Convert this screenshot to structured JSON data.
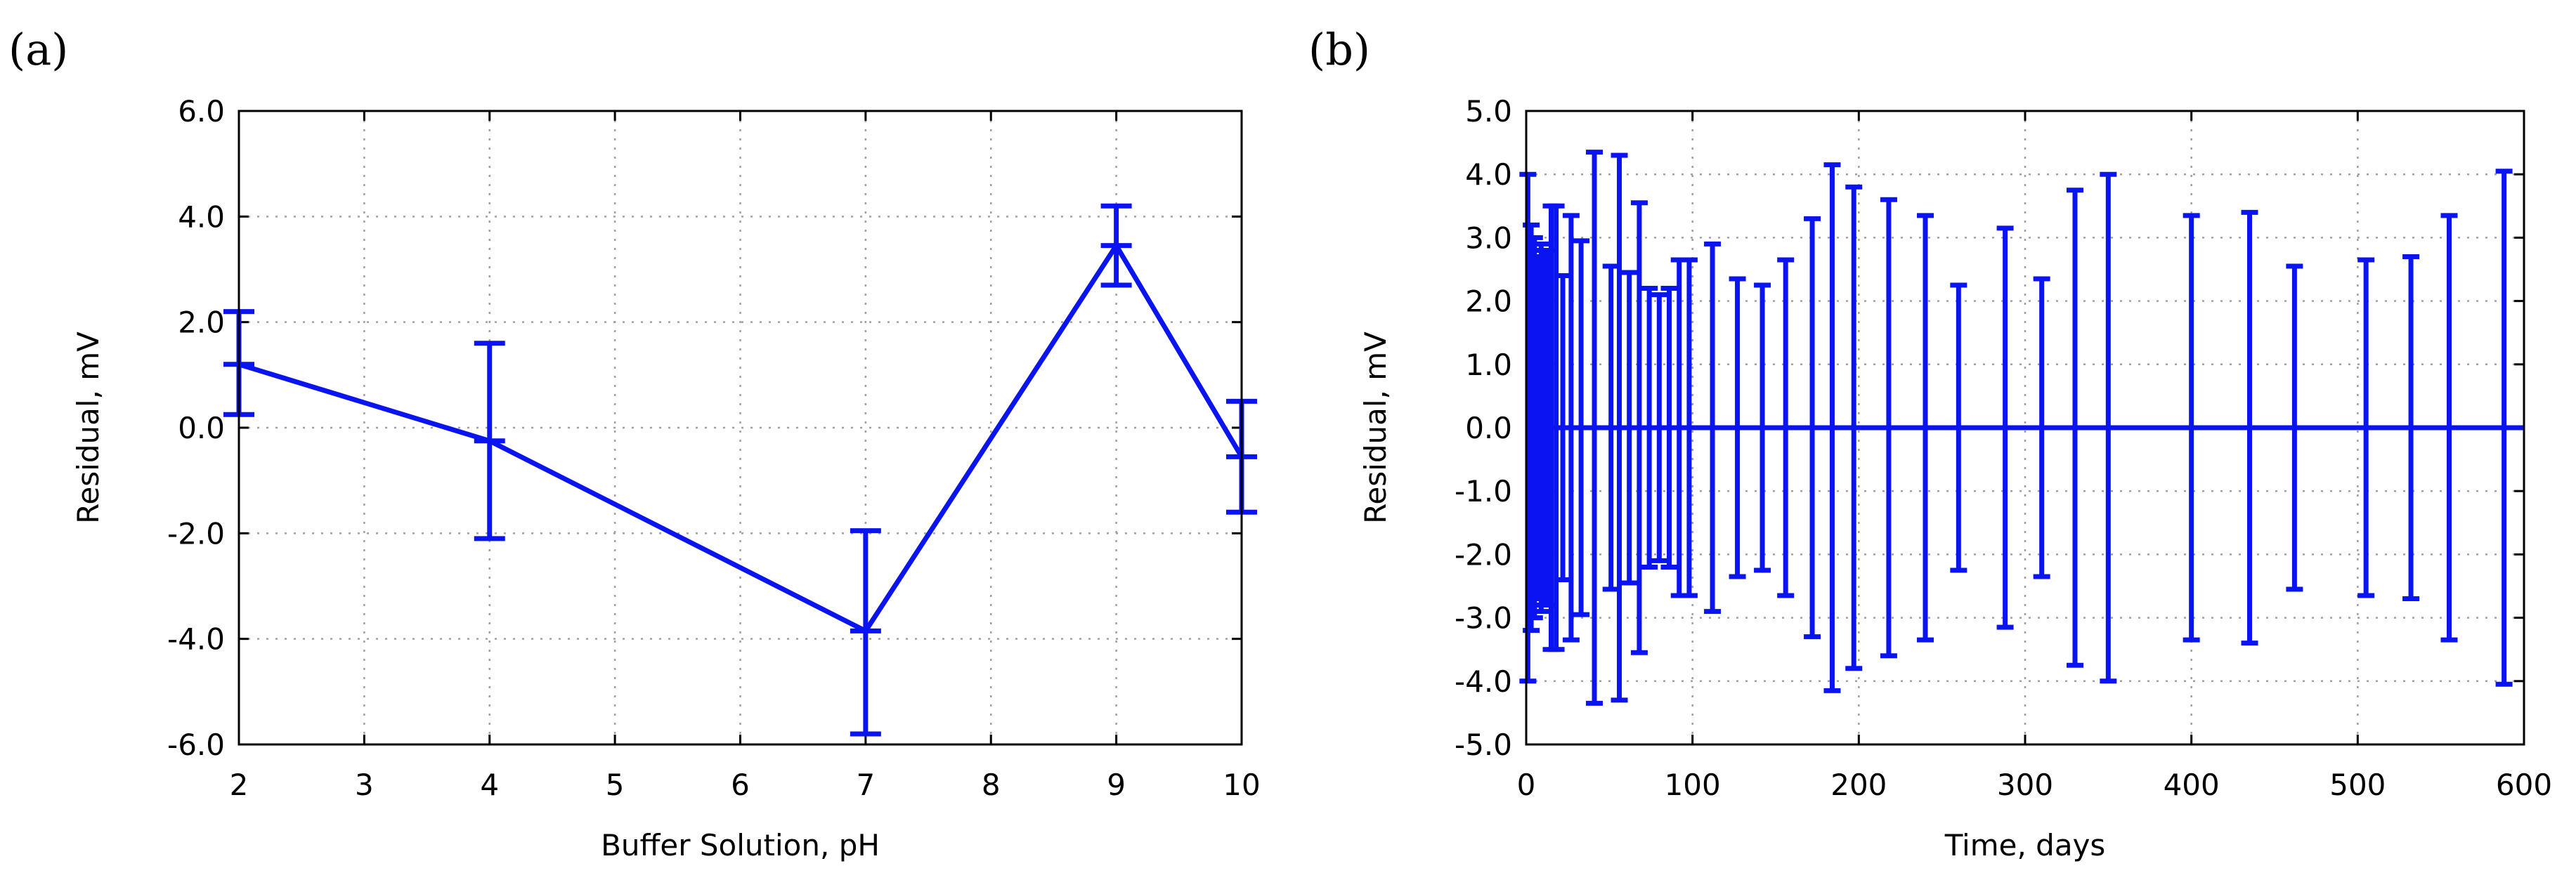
{
  "chart_data": [
    {
      "panel": "(a)",
      "type": "line",
      "title": "",
      "xlabel": "Buffer Solution, pH",
      "ylabel": "Residual, mV",
      "xlim": [
        2,
        10
      ],
      "ylim": [
        -6,
        6
      ],
      "x_ticks": [
        2,
        3,
        4,
        5,
        6,
        7,
        8,
        9,
        10
      ],
      "y_ticks": [
        -6,
        -4,
        -2,
        0,
        2,
        4,
        6
      ],
      "x_tick_labels": [
        "2",
        "3",
        "4",
        "5",
        "6",
        "7",
        "8",
        "9",
        "10"
      ],
      "y_tick_labels": [
        "-6.0",
        "-4.0",
        "-2.0",
        "0.0",
        "2.0",
        "4.0",
        "6.0"
      ],
      "grid": true,
      "series": [
        {
          "name": "Residual",
          "color": "#0a14f0",
          "x": [
            2,
            4,
            7,
            9,
            10
          ],
          "y": [
            1.2,
            -0.25,
            -3.85,
            3.45,
            -0.55
          ],
          "err_low": [
            0.25,
            -2.1,
            -5.8,
            2.7,
            -1.6
          ],
          "err_high": [
            2.2,
            1.6,
            -1.95,
            4.2,
            0.5
          ]
        }
      ]
    },
    {
      "panel": "(b)",
      "type": "line",
      "title": "",
      "xlabel": "Time, days",
      "ylabel": "Residual, mV",
      "xlim": [
        0,
        600
      ],
      "ylim": [
        -5,
        5
      ],
      "x_ticks": [
        0,
        100,
        200,
        300,
        400,
        500,
        600
      ],
      "y_ticks": [
        -5,
        -4,
        -3,
        -2,
        -1,
        0,
        1,
        2,
        3,
        4,
        5
      ],
      "x_tick_labels": [
        "0",
        "100",
        "200",
        "300",
        "400",
        "500",
        "600"
      ],
      "y_tick_labels": [
        "-5.0",
        "-4.0",
        "-3.0",
        "-2.0",
        "-1.0",
        "0.0",
        "1.0",
        "2.0",
        "3.0",
        "4.0",
        "5.0"
      ],
      "grid": true,
      "series": [
        {
          "name": "Residual",
          "color": "#0a14f0",
          "x": [
            1,
            3,
            5,
            7,
            9,
            11,
            13,
            15,
            18,
            22,
            27,
            33,
            41,
            51,
            56,
            62,
            68,
            74,
            80,
            86,
            92,
            98,
            112,
            127,
            142,
            156,
            172,
            184,
            197,
            218,
            240,
            260,
            288,
            310,
            330,
            350,
            400,
            435,
            462,
            505,
            532,
            555,
            588
          ],
          "y": [
            0,
            0,
            0,
            0,
            0,
            0,
            0,
            0,
            0,
            0,
            0,
            0,
            0,
            0,
            0,
            0,
            0,
            0,
            0,
            0,
            0,
            0,
            0,
            0,
            0,
            0,
            0,
            0,
            0,
            0,
            0,
            0,
            0,
            0,
            0,
            0,
            0,
            0,
            0,
            0,
            0,
            0,
            0
          ],
          "err": [
            4.0,
            3.2,
            3.0,
            2.7,
            2.9,
            2.8,
            2.8,
            3.5,
            3.5,
            2.4,
            3.35,
            2.95,
            4.35,
            2.55,
            4.3,
            2.45,
            3.55,
            2.2,
            2.1,
            2.2,
            2.65,
            2.65,
            2.9,
            2.35,
            2.25,
            2.65,
            3.3,
            4.15,
            3.8,
            3.6,
            3.35,
            2.25,
            3.15,
            2.35,
            3.75,
            4.0,
            3.35,
            3.4,
            2.55,
            2.65,
            2.7,
            3.35,
            4.05
          ]
        }
      ]
    }
  ],
  "panel_labels": {
    "a": "(a)",
    "b": "(b)"
  }
}
